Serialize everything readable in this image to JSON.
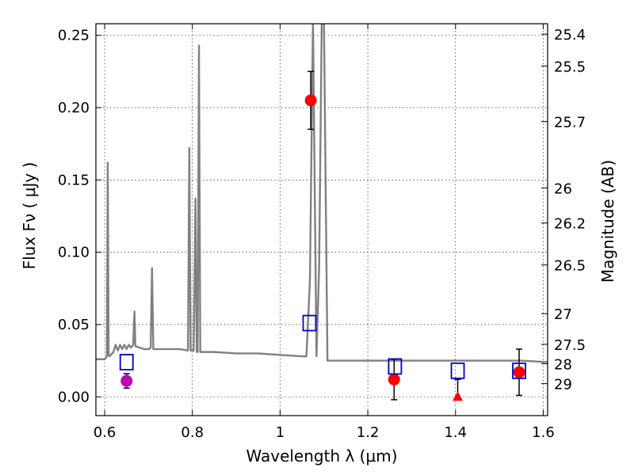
{
  "chart_data": {
    "type": "scatter",
    "xlabel": "Wavelength  λ (μm)",
    "ylabel": "Flux  Fν  ( μJy )",
    "ylabel_right": "Magnitude (AB)",
    "xlim": [
      0.58,
      1.61
    ],
    "ylim": [
      -0.013,
      0.258
    ],
    "grid": true,
    "x_ticks": [
      0.6,
      0.8,
      1.0,
      1.2,
      1.4,
      1.6
    ],
    "x_tick_labels": [
      "0.6",
      "0.8",
      "1",
      "1.2",
      "1.4",
      "1.6"
    ],
    "y_ticks": [
      0.0,
      0.05,
      0.1,
      0.15,
      0.2,
      0.25
    ],
    "y_tick_labels": [
      "0.00",
      "0.05",
      "0.10",
      "0.15",
      "0.20",
      "0.25"
    ],
    "right_ticks": [
      {
        "label": "25.4",
        "flux": 0.2508
      },
      {
        "label": "25.5",
        "flux": 0.2288
      },
      {
        "label": "25.7",
        "flux": 0.1903
      },
      {
        "label": "26",
        "flux": 0.1445
      },
      {
        "label": "26.2",
        "flux": 0.1202
      },
      {
        "label": "26.5",
        "flux": 0.0912
      },
      {
        "label": "27",
        "flux": 0.0575
      },
      {
        "label": "27.5",
        "flux": 0.0363
      },
      {
        "label": "28",
        "flux": 0.0229
      },
      {
        "label": "29",
        "flux": 0.0091
      }
    ],
    "colors": {
      "spectrum": "#808080",
      "detections": "#ff0000",
      "halpha_point": "#bf00bf",
      "model": "#0000cc",
      "errorbar": "#000000"
    },
    "spectrum": [
      [
        0.58,
        0.026
      ],
      [
        0.6,
        0.026
      ],
      [
        0.603,
        0.027
      ],
      [
        0.605,
        0.028
      ],
      [
        0.607,
        0.162
      ],
      [
        0.609,
        0.029
      ],
      [
        0.611,
        0.028
      ],
      [
        0.62,
        0.031
      ],
      [
        0.625,
        0.036
      ],
      [
        0.63,
        0.032
      ],
      [
        0.635,
        0.036
      ],
      [
        0.64,
        0.033
      ],
      [
        0.645,
        0.036
      ],
      [
        0.65,
        0.033
      ],
      [
        0.655,
        0.036
      ],
      [
        0.66,
        0.034
      ],
      [
        0.665,
        0.036
      ],
      [
        0.668,
        0.059
      ],
      [
        0.67,
        0.035
      ],
      [
        0.68,
        0.034
      ],
      [
        0.69,
        0.033
      ],
      [
        0.7,
        0.033
      ],
      [
        0.705,
        0.034
      ],
      [
        0.708,
        0.089
      ],
      [
        0.711,
        0.033
      ],
      [
        0.74,
        0.033
      ],
      [
        0.77,
        0.033
      ],
      [
        0.79,
        0.032
      ],
      [
        0.793,
        0.172
      ],
      [
        0.796,
        0.032
      ],
      [
        0.803,
        0.032
      ],
      [
        0.807,
        0.137
      ],
      [
        0.81,
        0.031
      ],
      [
        0.812,
        0.031
      ],
      [
        0.815,
        0.243
      ],
      [
        0.818,
        0.031
      ],
      [
        0.85,
        0.031
      ],
      [
        0.9,
        0.03
      ],
      [
        0.95,
        0.03
      ],
      [
        1.0,
        0.029
      ],
      [
        1.05,
        0.028
      ],
      [
        1.06,
        0.028
      ],
      [
        1.068,
        0.08
      ],
      [
        1.075,
        0.26
      ],
      [
        1.083,
        0.028
      ],
      [
        1.089,
        0.09
      ],
      [
        1.095,
        0.26
      ],
      [
        1.1,
        0.26
      ],
      [
        1.108,
        0.025
      ],
      [
        1.15,
        0.025
      ],
      [
        1.2,
        0.025
      ],
      [
        1.25,
        0.025
      ],
      [
        1.3,
        0.025
      ],
      [
        1.35,
        0.025
      ],
      [
        1.4,
        0.025
      ],
      [
        1.45,
        0.025
      ],
      [
        1.5,
        0.025
      ],
      [
        1.55,
        0.025
      ],
      [
        1.61,
        0.024
      ]
    ],
    "model_points": [
      {
        "x": 0.65,
        "y": 0.024
      },
      {
        "x": 1.067,
        "y": 0.051
      },
      {
        "x": 1.262,
        "y": 0.021
      },
      {
        "x": 1.405,
        "y": 0.018
      },
      {
        "x": 1.545,
        "y": 0.018
      }
    ],
    "observed_points": [
      {
        "x": 0.65,
        "y": 0.011,
        "err": 0.005,
        "marker": "circle",
        "color": "halpha_point"
      },
      {
        "x": 1.07,
        "y": 0.205,
        "err": 0.02,
        "marker": "circle",
        "color": "detections"
      },
      {
        "x": 1.26,
        "y": 0.012,
        "err": 0.014,
        "marker": "circle",
        "color": "detections"
      },
      {
        "x": 1.405,
        "y": 0.0,
        "err_upper": 0.012,
        "marker": "triangle",
        "color": "detections"
      },
      {
        "x": 1.545,
        "y": 0.017,
        "err": 0.016,
        "marker": "circle",
        "color": "detections"
      }
    ]
  }
}
